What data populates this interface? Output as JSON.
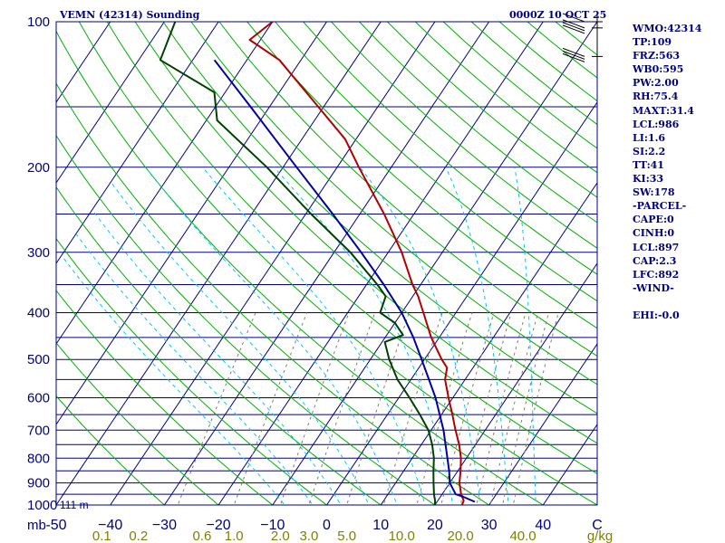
{
  "header": {
    "station_title": "VEMN (42314) Sounding",
    "timestamp": "0000Z 10 OCT 25"
  },
  "indices": [
    "WMO:42314",
    "TP:109",
    "FRZ:563",
    "WB0:595",
    "PW:2.00",
    "RH:75.4",
    "MAXT:31.4",
    "LCL:986",
    "LI:1.6",
    "SI:2.2",
    "TT:41",
    "KI:33",
    "SW:178",
    "-PARCEL-",
    "CAPE:0",
    "CINH:0",
    "LCL:897",
    "CAP:2.3",
    "LFC:892",
    "-WIND-",
    "",
    "EHI:-0.0"
  ],
  "surface_height_label": "111 m",
  "colors": {
    "background": "#ffffff",
    "frame_and_isobars": "#000080",
    "skewed_isotherms": "#000080",
    "dry_adiabats": "#00b000",
    "moist_adiabats": "#00c8ff",
    "mixing_ratio_lines": "#808060",
    "temperature": "#b00000",
    "dewpoint": "#004000",
    "parcel": "#0000a0",
    "axis_labels": "#000080",
    "mixing_ratio_labels": "#808000",
    "wind_barbs": "#000000"
  },
  "chart_data": {
    "type": "line",
    "diagram": "skew-t log-p",
    "y_axis": {
      "quantity": "pressure",
      "unit_label": "mb",
      "scale": "log",
      "range": [
        1000,
        100
      ],
      "ticks": [
        100,
        200,
        300,
        400,
        500,
        600,
        700,
        800,
        900,
        1000
      ],
      "tick_labels": [
        "100",
        "200",
        "300",
        "400",
        "500",
        "600",
        "700",
        "800",
        "900",
        "1000"
      ],
      "isobars_every": 50
    },
    "x_axis": {
      "quantity": "temperature at 1000 mb",
      "unit_label": "C",
      "range": [
        -50,
        50
      ],
      "ticks": [
        -50,
        -40,
        -30,
        -20,
        -10,
        0,
        10,
        20,
        30,
        40
      ],
      "tick_labels": [
        "-50",
        "−40",
        "−30",
        "−20",
        "−10",
        "0",
        "10",
        "20",
        "30",
        "40"
      ]
    },
    "mixing_ratio_axis": {
      "unit_label": "g/kg",
      "values": [
        0.1,
        0.2,
        0.6,
        1.0,
        2.0,
        3.0,
        5.0,
        10.0,
        20.0,
        40.0
      ],
      "tick_labels": [
        "0.1",
        "0.2",
        "0.6",
        "1.0",
        "2.0",
        "3.0",
        "5.0",
        "10.0",
        "20.0",
        "40.0"
      ]
    },
    "series": [
      {
        "key": "temperature",
        "points": [
          [
            1000,
            25.0
          ],
          [
            980,
            24.8
          ],
          [
            950,
            23.5
          ],
          [
            900,
            21.8
          ],
          [
            850,
            20.5
          ],
          [
            800,
            19.0
          ],
          [
            750,
            17.0
          ],
          [
            700,
            14.5
          ],
          [
            650,
            12.0
          ],
          [
            600,
            9.2
          ],
          [
            550,
            6.3
          ],
          [
            520,
            5.2
          ],
          [
            500,
            3.2
          ],
          [
            450,
            -1.5
          ],
          [
            400,
            -6.0
          ],
          [
            370,
            -9.0
          ],
          [
            350,
            -11.5
          ],
          [
            300,
            -17.5
          ],
          [
            250,
            -25.5
          ],
          [
            200,
            -36.0
          ],
          [
            175,
            -42.0
          ],
          [
            150,
            -51.0
          ],
          [
            120,
            -64.0
          ],
          [
            109,
            -72.0
          ],
          [
            100,
            -70.0
          ]
        ]
      },
      {
        "key": "dewpoint",
        "points": [
          [
            1000,
            20.0
          ],
          [
            980,
            19.5
          ],
          [
            950,
            18.5
          ],
          [
            900,
            17.0
          ],
          [
            850,
            15.5
          ],
          [
            800,
            14.0
          ],
          [
            750,
            12.0
          ],
          [
            700,
            9.5
          ],
          [
            650,
            6.0
          ],
          [
            600,
            2.0
          ],
          [
            550,
            -2.5
          ],
          [
            500,
            -6.5
          ],
          [
            460,
            -9.5
          ],
          [
            445,
            -7.0
          ],
          [
            420,
            -10.0
          ],
          [
            400,
            -14.0
          ],
          [
            370,
            -15.0
          ],
          [
            350,
            -18.0
          ],
          [
            300,
            -27.0
          ],
          [
            250,
            -39.0
          ],
          [
            200,
            -53.0
          ],
          [
            160,
            -68.0
          ],
          [
            140,
            -72.0
          ],
          [
            120,
            -86.0
          ],
          [
            100,
            -88.0
          ]
        ]
      },
      {
        "key": "parcel",
        "points": [
          [
            985,
            27.0
          ],
          [
            960,
            24.0
          ],
          [
            950,
            22.5
          ],
          [
            900,
            20.0
          ],
          [
            850,
            18.4
          ],
          [
            800,
            16.5
          ],
          [
            700,
            12.3
          ],
          [
            600,
            6.8
          ],
          [
            500,
            -0.5
          ],
          [
            450,
            -4.8
          ],
          [
            400,
            -10.0
          ],
          [
            350,
            -16.8
          ],
          [
            300,
            -25.0
          ],
          [
            250,
            -35.0
          ],
          [
            200,
            -47.5
          ],
          [
            150,
            -63.5
          ],
          [
            120,
            -76.0
          ]
        ]
      }
    ],
    "wind_barbs": [
      {
        "pressure": 103,
        "count": 3
      },
      {
        "pressure": 118,
        "count": 3
      },
      {
        "pressure": 100,
        "count": 1
      }
    ]
  }
}
